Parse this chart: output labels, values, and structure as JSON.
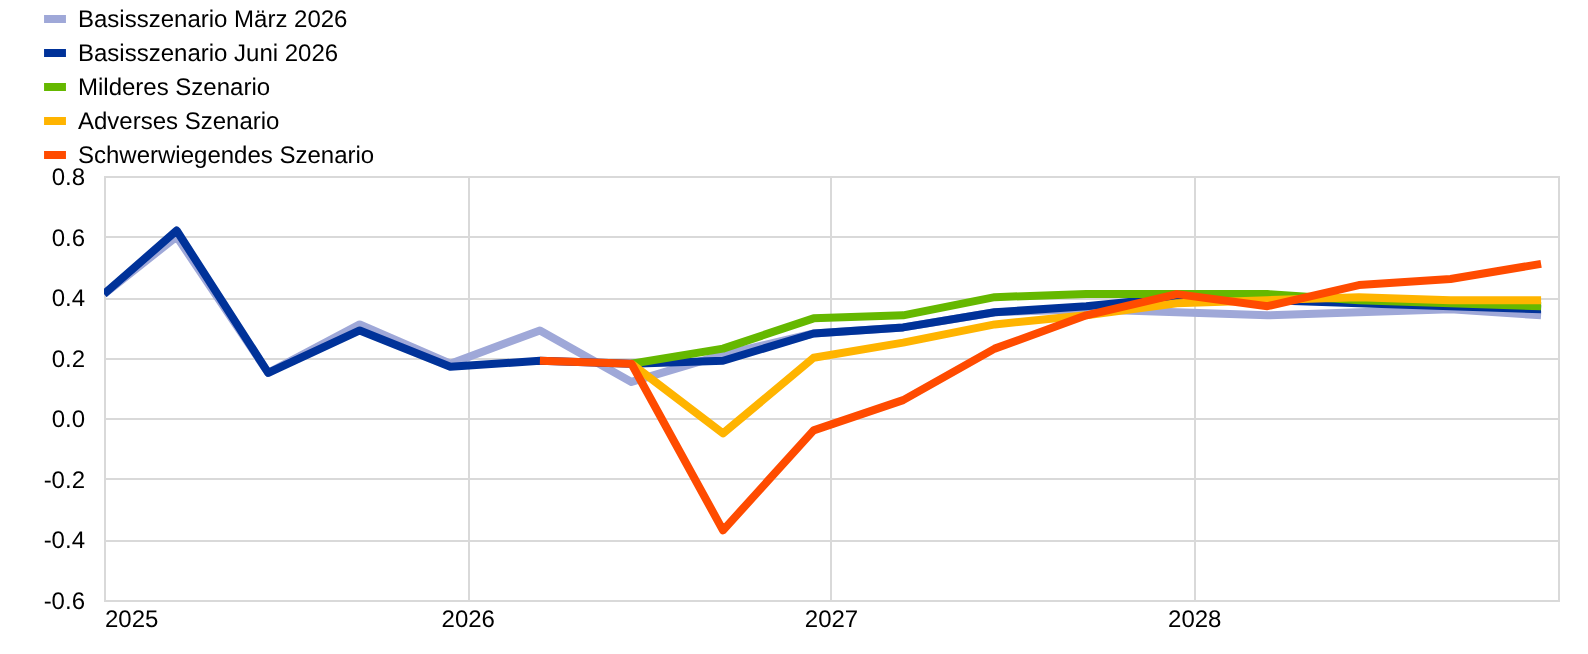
{
  "chart_data": {
    "type": "line",
    "x": [
      "2025-01-01",
      "2025-03-15",
      "2025-06-15",
      "2025-09-15",
      "2025-12-15",
      "2026-03-15",
      "2026-06-15",
      "2026-09-15",
      "2026-12-15",
      "2027-03-15",
      "2027-06-15",
      "2027-09-15",
      "2027-12-15",
      "2028-03-15",
      "2028-06-15",
      "2028-09-15",
      "2028-12-15"
    ],
    "series": [
      {
        "name": "Basisszenario März 2026",
        "color": "#9fa8d8",
        "values": [
          0.41,
          0.6,
          0.15,
          0.31,
          0.18,
          0.29,
          0.12,
          0.21,
          0.28,
          0.3,
          0.35,
          0.36,
          0.35,
          0.34,
          0.35,
          0.36,
          0.34
        ]
      },
      {
        "name": "Basisszenario Juni 2026",
        "color": "#003299",
        "values": [
          0.41,
          0.62,
          0.15,
          0.29,
          0.17,
          0.19,
          0.18,
          0.19,
          0.28,
          0.3,
          0.35,
          0.37,
          0.4,
          0.39,
          0.38,
          0.37,
          0.36
        ]
      },
      {
        "name": "Milderes Szenario",
        "color": "#65b800",
        "values": [
          null,
          null,
          null,
          null,
          null,
          null,
          0.18,
          0.23,
          0.33,
          0.34,
          0.4,
          0.41,
          0.41,
          0.41,
          0.39,
          0.38,
          0.37
        ]
      },
      {
        "name": "Adverses Szenario",
        "color": "#ffb400",
        "values": [
          null,
          null,
          null,
          null,
          null,
          null,
          0.18,
          -0.05,
          0.2,
          0.25,
          0.31,
          0.34,
          0.38,
          0.39,
          0.4,
          0.39,
          0.39
        ]
      },
      {
        "name": "Schwerwiegendes Szenario",
        "color": "#ff4b00",
        "values": [
          null,
          null,
          null,
          null,
          null,
          0.19,
          0.18,
          -0.37,
          -0.04,
          0.06,
          0.23,
          0.34,
          0.41,
          0.37,
          0.44,
          0.46,
          0.51
        ]
      }
    ],
    "xlim": [
      "2025-01-01",
      "2029-01-01"
    ],
    "xticks": [
      {
        "value": "2025-01-01",
        "label": "2025"
      },
      {
        "value": "2026-01-01",
        "label": "2026"
      },
      {
        "value": "2027-01-01",
        "label": "2027"
      },
      {
        "value": "2028-01-01",
        "label": "2028"
      }
    ],
    "ylim": [
      -0.6,
      0.8
    ],
    "yticks": [
      {
        "value": -0.6,
        "label": "-0.6"
      },
      {
        "value": -0.4,
        "label": "-0.4"
      },
      {
        "value": -0.2,
        "label": "-0.2"
      },
      {
        "value": 0,
        "label": "0.0"
      },
      {
        "value": 0.2,
        "label": "0.2"
      },
      {
        "value": 0.4,
        "label": "0.4"
      },
      {
        "value": 0.6,
        "label": "0.6"
      },
      {
        "value": 0.8,
        "label": "0.8"
      }
    ],
    "grid": true,
    "legend": "top left",
    "marker": "none",
    "line_style": "solid"
  }
}
